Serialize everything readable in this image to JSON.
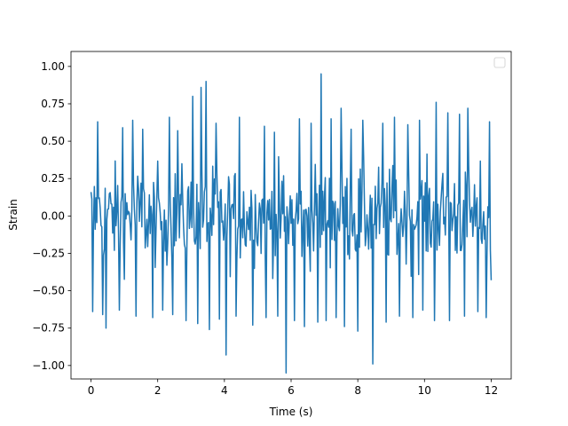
{
  "chart_data": {
    "type": "line",
    "xlabel": "Time (s)",
    "ylabel": "Strain",
    "xlim": [
      -0.6,
      12.6
    ],
    "ylim": [
      -1.09,
      1.1
    ],
    "xticks": [
      0,
      2,
      4,
      6,
      8,
      10,
      12
    ],
    "xtick_labels": [
      "0",
      "2",
      "4",
      "6",
      "8",
      "10",
      "12"
    ],
    "yticks": [
      -1.0,
      -0.75,
      -0.5,
      -0.25,
      0.0,
      0.25,
      0.5,
      0.75,
      1.0
    ],
    "ytick_labels": [
      "−1.00",
      "−0.75",
      "−0.50",
      "−0.25",
      "0.00",
      "0.25",
      "0.50",
      "0.75",
      "1.00"
    ],
    "grid": false,
    "legend": {
      "placement": "top-right",
      "entries": []
    },
    "series": [
      {
        "color": "#1f77b4",
        "sample_rate_hz": 40,
        "x_start": 0.0,
        "x_end": 12.0,
        "envelope_note": "dense noise",
        "peaks": [
          {
            "x": 0.05,
            "y": 0.61
          },
          {
            "x": 0.2,
            "y": 0.63
          },
          {
            "x": 0.45,
            "y": 0.57
          },
          {
            "x": 0.95,
            "y": 0.59
          },
          {
            "x": 1.25,
            "y": 0.64
          },
          {
            "x": 1.55,
            "y": 0.58
          },
          {
            "x": 1.85,
            "y": 0.61
          },
          {
            "x": 2.35,
            "y": 0.66
          },
          {
            "x": 2.6,
            "y": 0.57
          },
          {
            "x": 2.85,
            "y": 1.0
          },
          {
            "x": 3.05,
            "y": 0.8
          },
          {
            "x": 3.3,
            "y": 0.86
          },
          {
            "x": 3.45,
            "y": 0.9
          },
          {
            "x": 3.75,
            "y": 0.62
          },
          {
            "x": 4.05,
            "y": 0.65
          },
          {
            "x": 4.45,
            "y": 0.66
          },
          {
            "x": 4.85,
            "y": 0.57
          },
          {
            "x": 5.2,
            "y": 0.6
          },
          {
            "x": 5.5,
            "y": 0.56
          },
          {
            "x": 5.85,
            "y": 0.64
          },
          {
            "x": 6.25,
            "y": 0.65
          },
          {
            "x": 6.6,
            "y": 0.62
          },
          {
            "x": 6.9,
            "y": 0.95
          },
          {
            "x": 7.2,
            "y": 0.65
          },
          {
            "x": 7.5,
            "y": 0.72
          },
          {
            "x": 7.8,
            "y": 0.58
          },
          {
            "x": 8.15,
            "y": 0.64
          },
          {
            "x": 8.45,
            "y": 0.97
          },
          {
            "x": 8.75,
            "y": 0.62
          },
          {
            "x": 9.1,
            "y": 0.66
          },
          {
            "x": 9.5,
            "y": 0.61
          },
          {
            "x": 9.85,
            "y": 0.64
          },
          {
            "x": 10.35,
            "y": 0.76
          },
          {
            "x": 10.7,
            "y": 0.69
          },
          {
            "x": 11.05,
            "y": 0.68
          },
          {
            "x": 11.3,
            "y": 0.72
          },
          {
            "x": 11.6,
            "y": 0.82
          },
          {
            "x": 11.95,
            "y": 0.63
          }
        ],
        "troughs": [
          {
            "x": 0.05,
            "y": -0.64
          },
          {
            "x": 0.35,
            "y": -0.66
          },
          {
            "x": 0.45,
            "y": -0.75
          },
          {
            "x": 0.85,
            "y": -0.63
          },
          {
            "x": 1.35,
            "y": -0.67
          },
          {
            "x": 1.85,
            "y": -0.68
          },
          {
            "x": 2.15,
            "y": -0.63
          },
          {
            "x": 2.45,
            "y": -0.66
          },
          {
            "x": 2.85,
            "y": -0.7
          },
          {
            "x": 3.2,
            "y": -0.72
          },
          {
            "x": 3.55,
            "y": -0.76
          },
          {
            "x": 3.85,
            "y": -0.69
          },
          {
            "x": 4.05,
            "y": -0.93
          },
          {
            "x": 4.35,
            "y": -0.67
          },
          {
            "x": 4.85,
            "y": -0.73
          },
          {
            "x": 5.25,
            "y": -0.68
          },
          {
            "x": 5.6,
            "y": -0.67
          },
          {
            "x": 5.85,
            "y": -1.05
          },
          {
            "x": 6.1,
            "y": -0.7
          },
          {
            "x": 6.4,
            "y": -0.74
          },
          {
            "x": 6.8,
            "y": -0.71
          },
          {
            "x": 7.05,
            "y": -0.7
          },
          {
            "x": 7.35,
            "y": -0.68
          },
          {
            "x": 7.6,
            "y": -0.74
          },
          {
            "x": 8.0,
            "y": -0.77
          },
          {
            "x": 8.45,
            "y": -0.99
          },
          {
            "x": 8.85,
            "y": -0.71
          },
          {
            "x": 9.25,
            "y": -0.67
          },
          {
            "x": 9.65,
            "y": -0.68
          },
          {
            "x": 9.95,
            "y": -0.63
          },
          {
            "x": 10.3,
            "y": -0.7
          },
          {
            "x": 10.75,
            "y": -0.7
          },
          {
            "x": 11.2,
            "y": -0.67
          },
          {
            "x": 11.6,
            "y": -0.64
          },
          {
            "x": 11.85,
            "y": -0.68
          },
          {
            "x": 12.0,
            "y": -0.43
          }
        ]
      }
    ]
  }
}
